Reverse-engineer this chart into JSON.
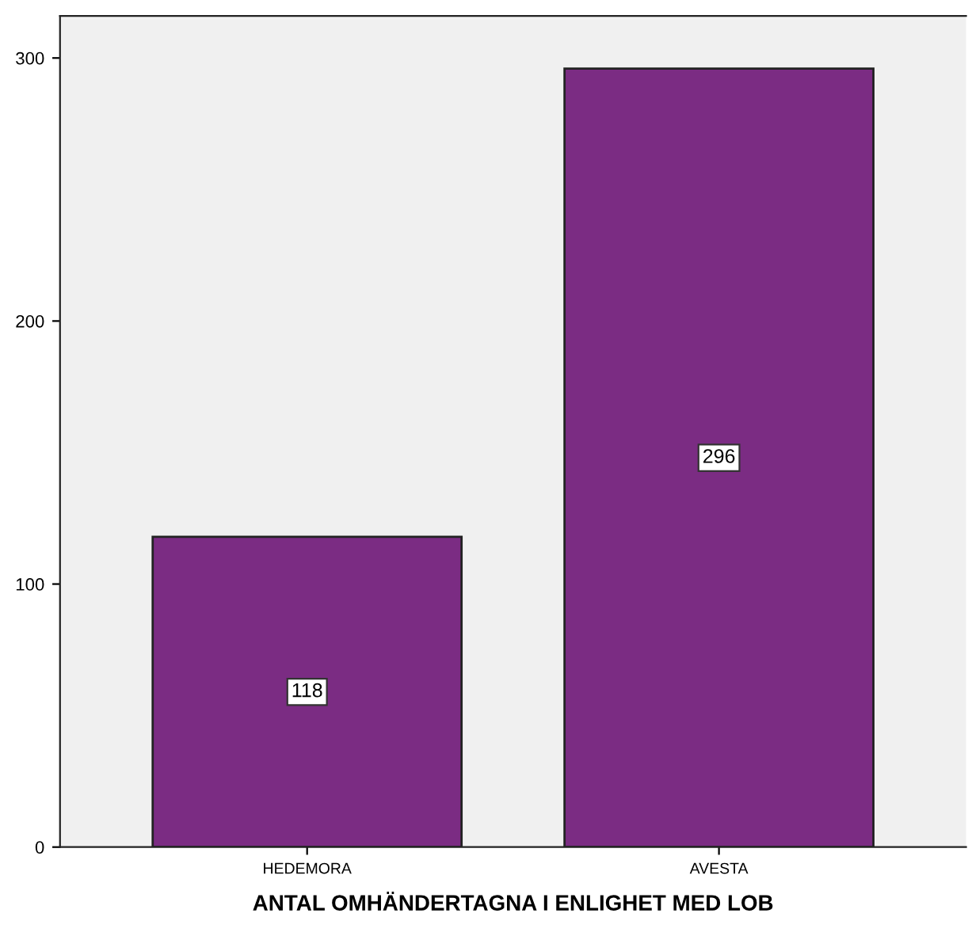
{
  "chart_data": {
    "type": "bar",
    "xlabel": "ANTAL OMHÄNDERTAGNA I ENLIGHET MED LOB",
    "categories": [
      "HEDEMORA",
      "AVESTA"
    ],
    "series": [
      {
        "color": "#7b2c83",
        "values": [
          118,
          296
        ]
      }
    ],
    "ylim": [
      0,
      316
    ],
    "yticks": [
      0,
      100,
      200,
      300
    ],
    "grid": false,
    "data_labels": true
  }
}
